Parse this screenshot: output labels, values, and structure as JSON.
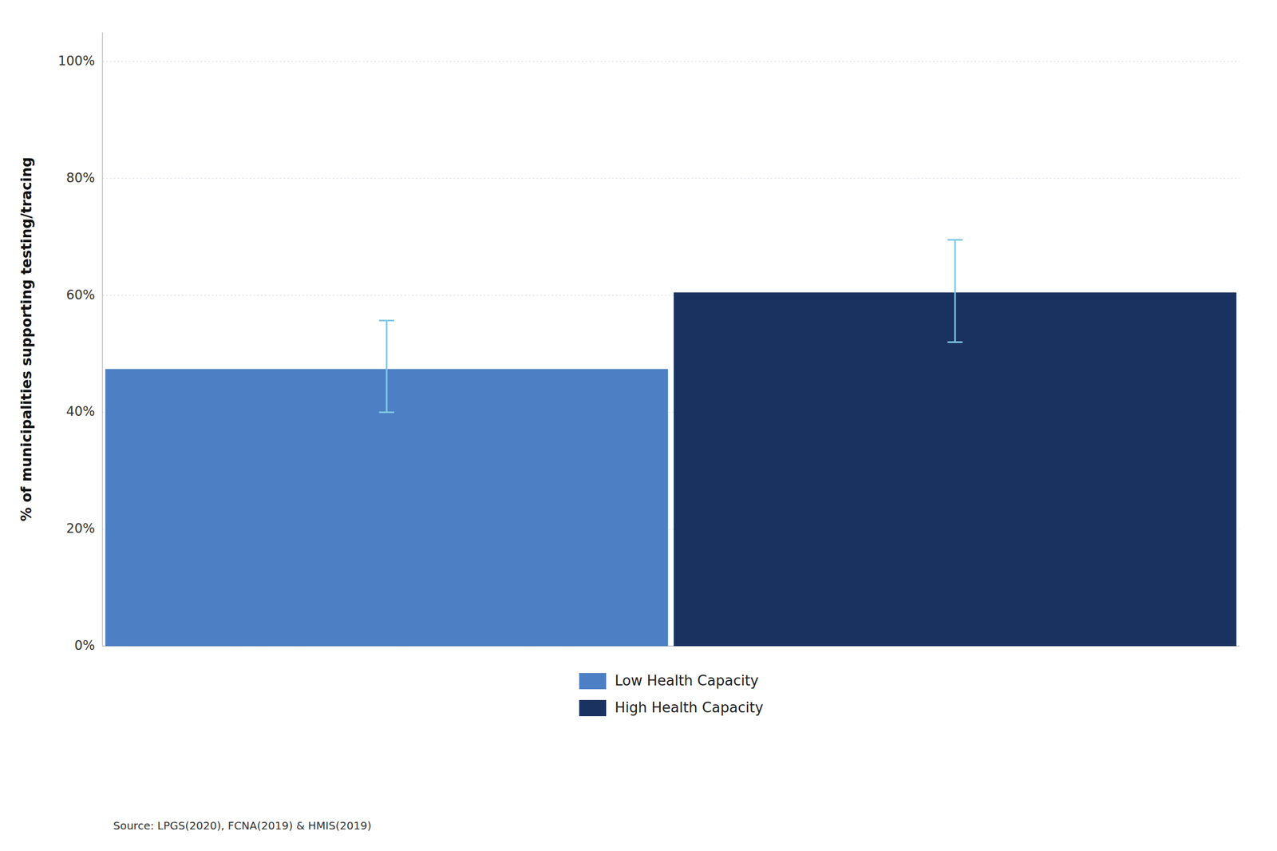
{
  "chart_data": {
    "type": "bar",
    "categories": [
      "Low Health Capacity",
      "High Health Capacity"
    ],
    "values": [
      0.474,
      0.605
    ],
    "colors": [
      "#4d7fc4",
      "#1a3260"
    ],
    "error_low": [
      0.074,
      0.085
    ],
    "error_high": [
      0.083,
      0.09
    ],
    "ylabel": "% of municipalities supporting testing/tracing",
    "ylim": [
      0,
      1.05
    ],
    "yticks": [
      {
        "value": 0.0,
        "label": "0%"
      },
      {
        "value": 0.2,
        "label": "20%"
      },
      {
        "value": 0.4,
        "label": "40%"
      },
      {
        "value": 0.6,
        "label": "60%"
      },
      {
        "value": 0.8,
        "label": "80%"
      },
      {
        "value": 1.0,
        "label": "100%"
      }
    ],
    "grid": true,
    "legend": "bottom",
    "tick_labels": "y",
    "annotations": [
      "Source: LPGS(2020), FCNA(2019) & HMIS(2019)"
    ]
  }
}
